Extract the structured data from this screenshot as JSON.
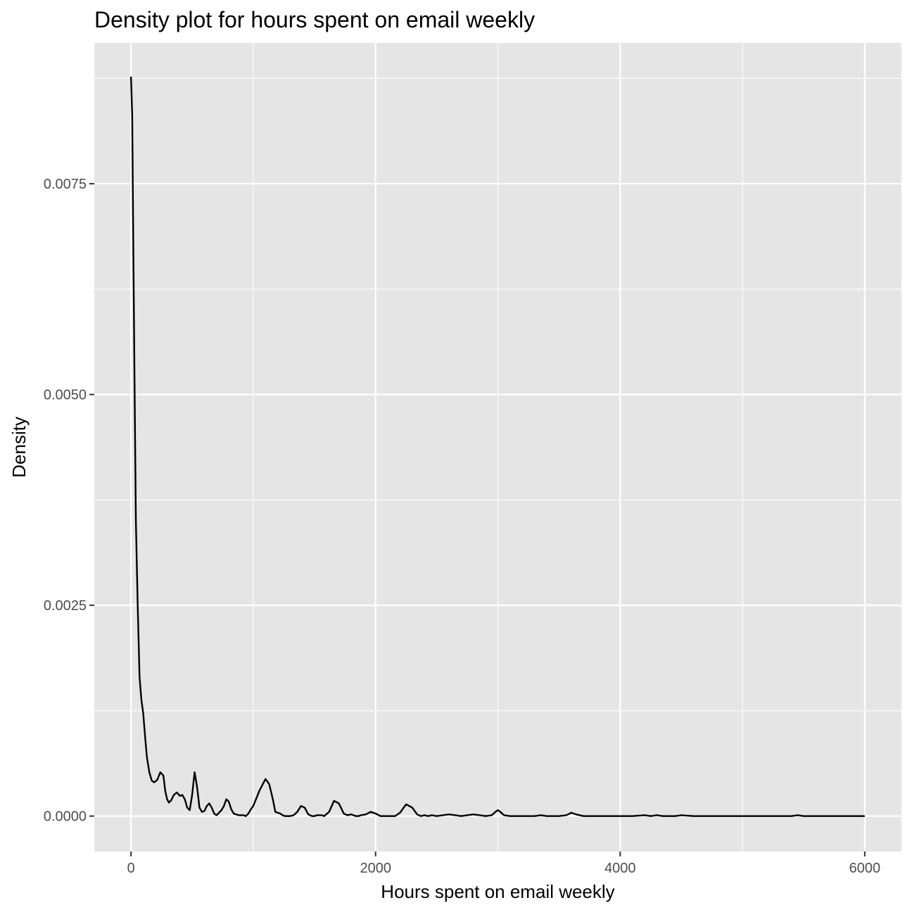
{
  "chart_data": {
    "type": "line",
    "title": "Density plot for hours spent on email weekly",
    "xlabel": "Hours spent on email weekly",
    "ylabel": "Density",
    "xlim": [
      -300,
      6300
    ],
    "ylim": [
      -0.00042,
      0.00917
    ],
    "x_ticks": [
      0,
      2000,
      4000,
      6000
    ],
    "x_tick_labels": [
      "0",
      "2000",
      "4000",
      "6000"
    ],
    "x_minor_ticks": [
      1000,
      3000,
      5000
    ],
    "y_ticks": [
      0.0,
      0.0025,
      0.005,
      0.0075
    ],
    "y_tick_labels": [
      "0.0000",
      "0.0025",
      "0.0050",
      "0.0075"
    ],
    "y_minor_ticks": [
      0.00125,
      0.00375,
      0.00625,
      0.00875
    ],
    "grid": true,
    "legend": "none",
    "series": [
      {
        "x": [
          0,
          10,
          20,
          30,
          40,
          55,
          70,
          85,
          100,
          115,
          130,
          150,
          170,
          190,
          215,
          240,
          265,
          280,
          295,
          310,
          330,
          350,
          375,
          400,
          420,
          440,
          460,
          480,
          500,
          520,
          540,
          560,
          580,
          600,
          620,
          640,
          660,
          680,
          700,
          720,
          740,
          760,
          780,
          800,
          820,
          840,
          860,
          880,
          900,
          920,
          940,
          960,
          980,
          1000,
          1050,
          1100,
          1130,
          1160,
          1180,
          1200,
          1220,
          1240,
          1260,
          1280,
          1300,
          1330,
          1360,
          1390,
          1420,
          1450,
          1480,
          1500,
          1520,
          1540,
          1560,
          1580,
          1620,
          1660,
          1700,
          1740,
          1770,
          1800,
          1820,
          1840,
          1860,
          1880,
          1920,
          1960,
          2000,
          2040,
          2070,
          2100,
          2130,
          2160,
          2200,
          2250,
          2300,
          2340,
          2370,
          2400,
          2430,
          2460,
          2500,
          2550,
          2600,
          2650,
          2700,
          2750,
          2800,
          2850,
          2900,
          2950,
          2980,
          3000,
          3020,
          3050,
          3100,
          3200,
          3300,
          3350,
          3400,
          3500,
          3560,
          3600,
          3640,
          3700,
          3800,
          3900,
          4000,
          4100,
          4200,
          4250,
          4300,
          4350,
          4400,
          4450,
          4500,
          4600,
          4700,
          4800,
          5000,
          5200,
          5400,
          5450,
          5500,
          5700,
          6000
        ],
        "y": [
          0.00877,
          0.00832,
          0.0066,
          0.005,
          0.0035,
          0.0025,
          0.00165,
          0.00138,
          0.00122,
          0.00095,
          0.0007,
          0.00052,
          0.00042,
          0.0004,
          0.00043,
          0.00052,
          0.00048,
          0.0003,
          0.0002,
          0.00016,
          0.00019,
          0.00025,
          0.00028,
          0.00024,
          0.00025,
          0.0002,
          0.0001,
          7e-05,
          0.00025,
          0.00052,
          0.00035,
          0.0001,
          5e-05,
          6e-05,
          0.00012,
          0.00015,
          0.0001,
          3e-05,
          1e-05,
          4e-05,
          7e-05,
          0.00012,
          0.0002,
          0.00017,
          8e-05,
          3e-05,
          2e-05,
          1e-05,
          1e-05,
          1e-05,
          0.0,
          3e-05,
          8e-05,
          0.00012,
          0.0003,
          0.00044,
          0.00038,
          0.0002,
          5e-05,
          4e-05,
          3e-05,
          1e-05,
          0.0,
          0.0,
          0.0,
          1e-05,
          5e-05,
          0.00012,
          0.0001,
          2e-05,
          0.0,
          0.0,
          1e-05,
          1e-05,
          1e-05,
          0.0,
          5e-05,
          0.00018,
          0.00015,
          3e-05,
          1e-05,
          2e-05,
          1e-05,
          0.0,
          0.0,
          1e-05,
          2e-05,
          5e-05,
          3e-05,
          0.0,
          0.0,
          0.0,
          0.0,
          0.0,
          4e-05,
          0.00014,
          0.0001,
          2e-05,
          0.0,
          1e-05,
          0.0,
          1e-05,
          0.0,
          1e-05,
          2e-05,
          1e-05,
          0.0,
          1e-05,
          2e-05,
          1e-05,
          0.0,
          1e-05,
          5e-05,
          7e-05,
          5e-05,
          1e-05,
          0.0,
          0.0,
          0.0,
          1e-05,
          0.0,
          0.0,
          1e-05,
          4e-05,
          2e-05,
          0.0,
          0.0,
          0.0,
          0.0,
          0.0,
          1e-05,
          0.0,
          1e-05,
          0.0,
          0.0,
          0.0,
          1e-05,
          0.0,
          0.0,
          0.0,
          0.0,
          0.0,
          0.0,
          1e-05,
          0.0,
          0.0,
          0.0
        ]
      }
    ]
  },
  "colors": {
    "panel_background": "#e5e5e5",
    "grid_line": "#ffffff",
    "line": "#000000",
    "tick_text": "#4d4d4d",
    "tick_mark": "#333333"
  }
}
